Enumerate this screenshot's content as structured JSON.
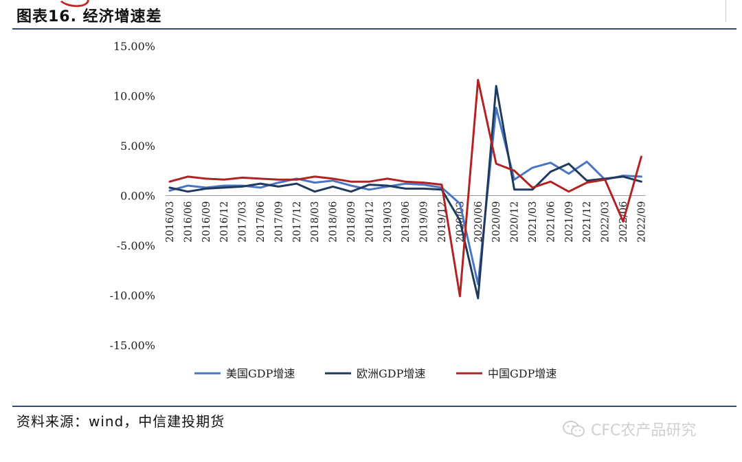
{
  "header": {
    "title": "图表16. 经济增速差"
  },
  "footer": {
    "source": "资料来源：wind，中信建投期货",
    "watermark": "CFC农产品研究"
  },
  "chart_data": {
    "type": "line",
    "title": "",
    "xlabel": "",
    "ylabel": "",
    "ylim": [
      -15,
      15
    ],
    "yticks": [
      15,
      10,
      5,
      0,
      -5,
      -10,
      -15
    ],
    "ytick_labels": [
      "15.00%",
      "10.00%",
      "5.00%",
      "0.00%",
      "-5.00%",
      "-10.00%",
      "-15.00%"
    ],
    "grid": false,
    "legend_position": "bottom",
    "categories": [
      "2016/03",
      "2016/06",
      "2016/09",
      "2016/12",
      "2017/03",
      "2017/06",
      "2017/09",
      "2017/12",
      "2018/03",
      "2018/06",
      "2018/09",
      "2018/12",
      "2019/03",
      "2019/06",
      "2019/09",
      "2019/12",
      "2020/03",
      "2020/06",
      "2020/09",
      "2020/12",
      "2021/03",
      "2021/06",
      "2021/09",
      "2021/12",
      "2022/03",
      "2022/06",
      "2022/09"
    ],
    "series": [
      {
        "name": "美国GDP增速",
        "color": "#4a74c4",
        "values": [
          0.5,
          1.0,
          0.8,
          1.0,
          1.0,
          0.8,
          1.3,
          1.7,
          1.3,
          1.5,
          1.0,
          0.6,
          0.9,
          1.2,
          1.1,
          0.8,
          -0.8,
          -8.9,
          8.8,
          1.6,
          2.8,
          3.3,
          2.2,
          3.4,
          1.6,
          2.0,
          1.9
        ]
      },
      {
        "name": "欧洲GDP增速",
        "color": "#1f3a5f",
        "values": [
          0.8,
          0.4,
          0.7,
          0.8,
          0.9,
          1.2,
          0.9,
          1.2,
          0.4,
          0.9,
          0.4,
          1.1,
          1.0,
          0.7,
          0.7,
          0.6,
          -2.5,
          -10.3,
          11.0,
          0.6,
          0.6,
          2.4,
          3.2,
          1.5,
          1.7,
          1.9,
          1.4
        ]
      },
      {
        "name": "中国GDP增速",
        "color": "#b22222",
        "values": [
          1.4,
          1.9,
          1.7,
          1.6,
          1.8,
          1.7,
          1.6,
          1.6,
          1.9,
          1.7,
          1.4,
          1.4,
          1.7,
          1.4,
          1.3,
          1.1,
          -10.1,
          11.6,
          3.2,
          2.5,
          0.8,
          1.4,
          0.4,
          1.3,
          1.6,
          -2.6,
          3.9
        ]
      }
    ]
  }
}
